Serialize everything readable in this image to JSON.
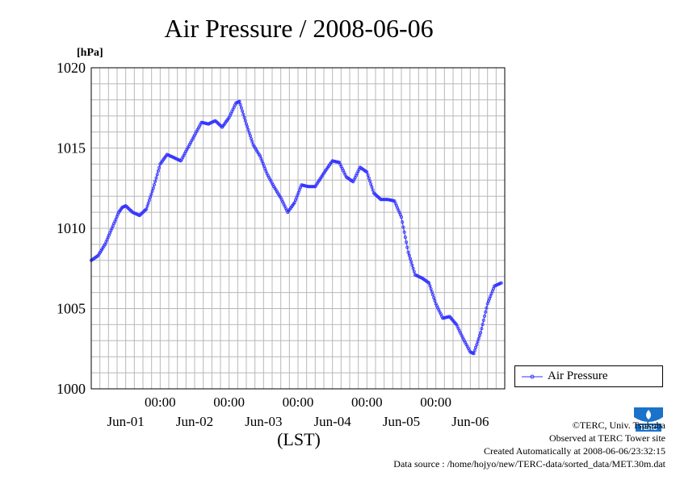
{
  "chart_data": {
    "type": "line",
    "title": "Air Pressure / 2008-06-06",
    "ylabel": "[hPa]",
    "xlabel": "(LST)",
    "ylim": [
      1000,
      1020
    ],
    "yticks": [
      1000,
      1005,
      1010,
      1015,
      1020
    ],
    "xlim_days": [
      0,
      6
    ],
    "time_tick_label": "00:00",
    "day_labels": [
      "Jun-01",
      "Jun-02",
      "Jun-03",
      "Jun-04",
      "Jun-05",
      "Jun-06"
    ],
    "grid": true,
    "legend_position": "right",
    "series": [
      {
        "name": "Air Pressure",
        "color": "#3333ff",
        "marker": "circle",
        "points": [
          [
            0.0,
            1008.0
          ],
          [
            0.1,
            1008.3
          ],
          [
            0.2,
            1009.0
          ],
          [
            0.3,
            1010.0
          ],
          [
            0.4,
            1011.0
          ],
          [
            0.45,
            1011.3
          ],
          [
            0.5,
            1011.4
          ],
          [
            0.6,
            1011.0
          ],
          [
            0.7,
            1010.8
          ],
          [
            0.8,
            1011.2
          ],
          [
            0.9,
            1012.5
          ],
          [
            1.0,
            1014.0
          ],
          [
            1.1,
            1014.6
          ],
          [
            1.2,
            1014.4
          ],
          [
            1.3,
            1014.2
          ],
          [
            1.4,
            1015.0
          ],
          [
            1.5,
            1015.8
          ],
          [
            1.6,
            1016.6
          ],
          [
            1.7,
            1016.5
          ],
          [
            1.8,
            1016.7
          ],
          [
            1.9,
            1016.3
          ],
          [
            2.0,
            1016.9
          ],
          [
            2.1,
            1017.8
          ],
          [
            2.15,
            1017.9
          ],
          [
            2.25,
            1016.5
          ],
          [
            2.35,
            1015.2
          ],
          [
            2.45,
            1014.5
          ],
          [
            2.55,
            1013.4
          ],
          [
            2.65,
            1012.6
          ],
          [
            2.75,
            1011.9
          ],
          [
            2.85,
            1011.0
          ],
          [
            2.95,
            1011.6
          ],
          [
            3.05,
            1012.7
          ],
          [
            3.15,
            1012.6
          ],
          [
            3.25,
            1012.6
          ],
          [
            3.4,
            1013.6
          ],
          [
            3.5,
            1014.2
          ],
          [
            3.6,
            1014.1
          ],
          [
            3.7,
            1013.2
          ],
          [
            3.8,
            1012.9
          ],
          [
            3.9,
            1013.8
          ],
          [
            4.0,
            1013.5
          ],
          [
            4.1,
            1012.2
          ],
          [
            4.2,
            1011.8
          ],
          [
            4.3,
            1011.8
          ],
          [
            4.4,
            1011.7
          ],
          [
            4.5,
            1010.7
          ],
          [
            4.6,
            1008.5
          ],
          [
            4.7,
            1007.1
          ],
          [
            4.8,
            1006.9
          ],
          [
            4.9,
            1006.6
          ],
          [
            5.0,
            1005.3
          ],
          [
            5.1,
            1004.4
          ],
          [
            5.2,
            1004.5
          ],
          [
            5.3,
            1004.0
          ],
          [
            5.4,
            1003.1
          ],
          [
            5.5,
            1002.3
          ],
          [
            5.55,
            1002.2
          ],
          [
            5.65,
            1003.5
          ],
          [
            5.75,
            1005.3
          ],
          [
            5.85,
            1006.4
          ],
          [
            5.95,
            1006.6
          ]
        ]
      }
    ]
  },
  "legend": {
    "label": "Air Pressure"
  },
  "footer": {
    "copyright": "©TERC, Univ. Tsukuba",
    "site": "Observed at TERC Tower site",
    "created": "Created Automatically at 2008-06-06/23:32:15",
    "source": "Data source : /home/hojyo/new/TERC-data/sorted_data/MET.30m.dat"
  },
  "logo": {
    "text": "TERC",
    "color": "#1a73c9"
  }
}
